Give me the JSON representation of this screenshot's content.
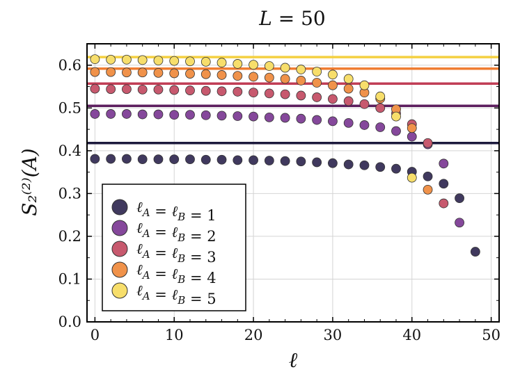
{
  "chart_data": {
    "type": "scatter",
    "title": "L = 50",
    "xlabel": "ℓ",
    "ylabel": "S₂⁽²⁾(A)",
    "xlim": [
      -1,
      51
    ],
    "ylim": [
      0.0,
      0.65
    ],
    "xticks": [
      0,
      10,
      20,
      30,
      40,
      50
    ],
    "xtick_labels": [
      "0",
      "10",
      "20",
      "30",
      "40",
      "50"
    ],
    "yticks": [
      0.0,
      0.1,
      0.2,
      0.3,
      0.4,
      0.5,
      0.6
    ],
    "ytick_labels": [
      "0.0",
      "0.1",
      "0.2",
      "0.3",
      "0.4",
      "0.5",
      "0.6"
    ],
    "grid": true,
    "legend_position": "lower-left",
    "series": [
      {
        "name": "ℓA = ℓB = 1",
        "color": "#40395e",
        "hline": 0.418,
        "x": [
          0,
          2,
          4,
          6,
          8,
          10,
          12,
          14,
          16,
          18,
          20,
          22,
          24,
          26,
          28,
          30,
          32,
          34,
          36,
          38,
          40,
          42,
          44,
          46,
          48
        ],
        "y": [
          0.381,
          0.381,
          0.381,
          0.38,
          0.38,
          0.38,
          0.38,
          0.379,
          0.379,
          0.378,
          0.378,
          0.377,
          0.376,
          0.375,
          0.373,
          0.371,
          0.368,
          0.366,
          0.362,
          0.358,
          0.351,
          0.34,
          0.323,
          0.289,
          0.164
        ]
      },
      {
        "name": "ℓA = ℓB = 2",
        "color": "#85489b",
        "hline": 0.505,
        "x": [
          0,
          2,
          4,
          6,
          8,
          10,
          12,
          14,
          16,
          18,
          20,
          22,
          24,
          26,
          28,
          30,
          32,
          34,
          36,
          38,
          40,
          42,
          44,
          46
        ],
        "y": [
          0.486,
          0.486,
          0.486,
          0.485,
          0.485,
          0.484,
          0.484,
          0.483,
          0.482,
          0.481,
          0.48,
          0.478,
          0.477,
          0.475,
          0.472,
          0.469,
          0.465,
          0.46,
          0.455,
          0.446,
          0.433,
          0.415,
          0.37,
          0.232
        ]
      },
      {
        "name": "ℓA = ℓB = 3",
        "color": "#c7596e",
        "hline": 0.557,
        "x": [
          0,
          2,
          4,
          6,
          8,
          10,
          12,
          14,
          16,
          18,
          20,
          22,
          24,
          26,
          28,
          30,
          32,
          34,
          36,
          38,
          40,
          42,
          44
        ],
        "y": [
          0.545,
          0.544,
          0.544,
          0.543,
          0.543,
          0.542,
          0.541,
          0.54,
          0.539,
          0.538,
          0.536,
          0.534,
          0.532,
          0.529,
          0.525,
          0.521,
          0.516,
          0.509,
          0.5,
          0.487,
          0.462,
          0.418,
          0.277
        ]
      },
      {
        "name": "ℓA = ℓB = 4",
        "color": "#f0924a",
        "hline": 0.592,
        "x": [
          0,
          2,
          4,
          6,
          8,
          10,
          12,
          14,
          16,
          18,
          20,
          22,
          24,
          26,
          28,
          30,
          32,
          34,
          36,
          38,
          40,
          42
        ],
        "y": [
          0.584,
          0.584,
          0.583,
          0.583,
          0.582,
          0.581,
          0.58,
          0.579,
          0.577,
          0.575,
          0.573,
          0.571,
          0.568,
          0.564,
          0.559,
          0.553,
          0.545,
          0.536,
          0.522,
          0.497,
          0.453,
          0.309
        ]
      },
      {
        "name": "ℓA = ℓB = 5",
        "color": "#f7de6b",
        "hline": 0.619,
        "x": [
          0,
          2,
          4,
          6,
          8,
          10,
          12,
          14,
          16,
          18,
          20,
          22,
          24,
          26,
          28,
          30,
          32,
          34,
          36,
          38,
          40
        ],
        "y": [
          0.614,
          0.613,
          0.613,
          0.612,
          0.611,
          0.61,
          0.609,
          0.608,
          0.606,
          0.603,
          0.601,
          0.598,
          0.594,
          0.59,
          0.585,
          0.578,
          0.568,
          0.553,
          0.527,
          0.48,
          0.337
        ]
      }
    ]
  }
}
